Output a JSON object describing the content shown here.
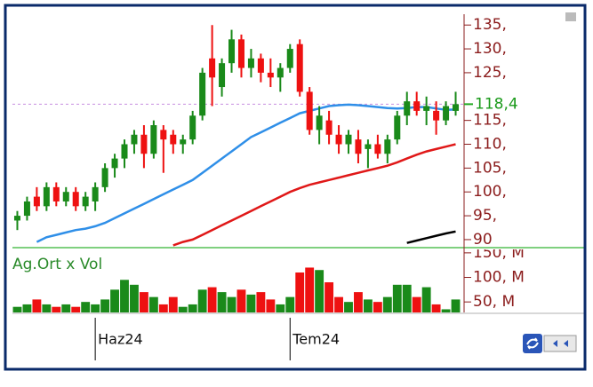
{
  "chart_data": {
    "type": "candlestick",
    "categories": [
      null,
      null,
      null,
      null,
      null,
      null,
      null,
      null,
      "Haz24",
      null,
      null,
      null,
      null,
      null,
      null,
      null,
      null,
      null,
      null,
      null,
      null,
      null,
      null,
      null,
      null,
      null,
      null,
      null,
      "Tem24",
      null,
      null,
      null,
      null,
      null,
      null,
      null,
      null,
      null,
      null,
      null,
      null,
      null,
      null,
      null,
      null,
      null
    ],
    "open": [
      94,
      95,
      99,
      97,
      101,
      98,
      100,
      97,
      98,
      101,
      105,
      107,
      110,
      112,
      108,
      113,
      112,
      110,
      111,
      116,
      128,
      122,
      127,
      132,
      126,
      128,
      125,
      124,
      126,
      131,
      121,
      113,
      115,
      112,
      110,
      111,
      109,
      110,
      108,
      111,
      116,
      119,
      117,
      117,
      115,
      117
    ],
    "high": [
      96,
      99,
      101,
      102,
      102,
      101,
      101,
      100,
      102,
      106,
      108,
      111,
      113,
      114,
      115,
      114,
      113,
      112,
      117,
      126,
      135,
      128,
      134,
      133,
      130,
      129,
      128,
      127,
      131,
      132,
      122,
      118,
      117,
      114,
      113,
      113,
      111,
      112,
      112,
      117,
      121,
      121,
      120,
      119,
      119,
      121
    ],
    "low": [
      92,
      94,
      96,
      96,
      97,
      97,
      96,
      96,
      96,
      100,
      103,
      105,
      108,
      105,
      107,
      104,
      108,
      108,
      110,
      115,
      118,
      120,
      125,
      124,
      124,
      123,
      122,
      121,
      125,
      120,
      112,
      110,
      110,
      108,
      108,
      106,
      105,
      107,
      106,
      110,
      114,
      116,
      114,
      112,
      114,
      116
    ],
    "close": [
      95,
      98,
      97,
      101,
      98,
      100,
      97,
      99,
      101,
      105,
      107,
      110,
      112,
      108,
      114,
      111,
      110,
      111,
      116,
      125,
      124,
      127,
      132,
      126,
      128,
      125,
      124,
      126,
      130,
      121,
      113,
      116,
      112,
      110,
      112,
      108,
      110,
      108,
      111,
      116,
      119,
      117,
      118,
      115,
      118,
      118.4
    ],
    "up_color": "#1a8a1a",
    "down_color": "#ee1111",
    "lines": [
      {
        "color": "#2f8fe8",
        "values": [
          null,
          null,
          89.5,
          90.5,
          91,
          91.5,
          92,
          92.3,
          92.8,
          93.5,
          94.5,
          95.5,
          96.5,
          97.5,
          98.5,
          99.5,
          100.5,
          101.5,
          102.5,
          104,
          105.5,
          107,
          108.5,
          110,
          111.5,
          112.5,
          113.5,
          114.5,
          115.5,
          116.5,
          117,
          117.5,
          118,
          118.2,
          118.3,
          118.2,
          118,
          117.8,
          117.6,
          117.5,
          117.6,
          117.8,
          117.8,
          117.5,
          117.2,
          117.3
        ]
      },
      {
        "color": "#e01818",
        "values": [
          null,
          null,
          null,
          null,
          null,
          null,
          null,
          null,
          null,
          null,
          null,
          null,
          null,
          null,
          null,
          null,
          88.8,
          89.5,
          90,
          91,
          92,
          93,
          94,
          95,
          96,
          97,
          98,
          99,
          100,
          100.8,
          101.5,
          102,
          102.5,
          103,
          103.5,
          104,
          104.5,
          105,
          105.5,
          106.2,
          107,
          107.8,
          108.5,
          109,
          109.5,
          110
        ]
      },
      {
        "color": "#000000",
        "values": [
          null,
          null,
          null,
          null,
          null,
          null,
          null,
          null,
          null,
          null,
          null,
          null,
          null,
          null,
          null,
          null,
          null,
          null,
          null,
          null,
          null,
          null,
          null,
          null,
          null,
          null,
          null,
          null,
          null,
          null,
          null,
          null,
          null,
          null,
          null,
          null,
          null,
          null,
          null,
          null,
          89.3,
          89.8,
          90.3,
          90.8,
          91.3,
          91.7
        ]
      }
    ],
    "ylim": [
      88.5,
      136.9
    ],
    "yticks": [
      {
        "value": 135,
        "label": "135,"
      },
      {
        "value": 130,
        "label": "130,"
      },
      {
        "value": 125,
        "label": "125,"
      },
      {
        "value": 115,
        "label": "115,"
      },
      {
        "value": 110,
        "label": "110,"
      },
      {
        "value": 105,
        "label": "105,"
      },
      {
        "value": 100,
        "label": "100,"
      },
      {
        "value": 95,
        "label": "95,"
      },
      {
        "value": 90,
        "label": "90"
      }
    ],
    "last_value": {
      "value": 118.4,
      "label": "118,4"
    },
    "volume": {
      "title": "Ag.Ort x Vol",
      "values": [
        40,
        45,
        55,
        45,
        40,
        45,
        40,
        50,
        45,
        55,
        75,
        95,
        85,
        70,
        60,
        45,
        60,
        40,
        45,
        75,
        80,
        70,
        60,
        75,
        65,
        70,
        55,
        45,
        60,
        110,
        120,
        115,
        90,
        60,
        50,
        70,
        55,
        50,
        60,
        85,
        85,
        60,
        80,
        45,
        35,
        55
      ],
      "ylim": [
        28.6,
        157
      ],
      "yticks": [
        {
          "value": 150,
          "label": "150, M"
        },
        {
          "value": 100,
          "label": "100, M"
        },
        {
          "value": 50,
          "label": "50, M"
        }
      ]
    }
  }
}
